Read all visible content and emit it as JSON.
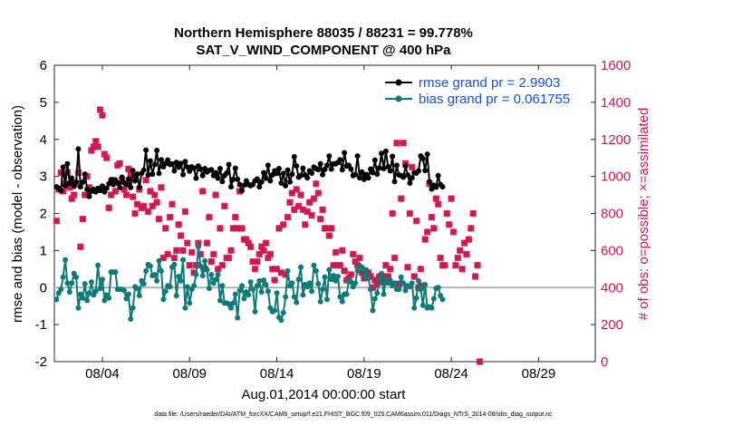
{
  "chart_data": {
    "type": "line",
    "title": "Northern Hemisphere 88035 / 88231 = 99.778%",
    "subtitle": "SAT_V_WIND_COMPONENT @ 400 hPa",
    "xlabel": "Aug.01,2014 00:00:00 start",
    "ylabel": "rmse and bias (model - observation)",
    "y2label": "# of obs: o=possible; ×=assimilated",
    "footer": "data file: /Users/raeder/DAI/ATM_forcXX/CAM6_setup/f.e21.FHIST_BGC.f09_025.CAM6assim.011/Diags_NTrS_2014-08/obs_diag_output.nc",
    "xlim": [
      1,
      32
    ],
    "ylim": [
      -2,
      6
    ],
    "y2lim": [
      0,
      1600
    ],
    "x_ticks": [
      3.75,
      8.75,
      13.75,
      18.75,
      23.75,
      28.75
    ],
    "x_tick_labels": [
      "08/04",
      "08/09",
      "08/14",
      "08/19",
      "08/24",
      "08/29"
    ],
    "y_ticks": [
      "-2",
      "-1",
      "0",
      "1",
      "2",
      "3",
      "4",
      "5",
      "6"
    ],
    "y2_ticks": [
      "0",
      "200",
      "400",
      "600",
      "800",
      "1000",
      "1200",
      "1400",
      "1600"
    ],
    "zero_line": 0,
    "legend_position": "top-right",
    "series": [
      {
        "name": "rmse grand pr = 2.9903",
        "color": "#000000",
        "marker": "circle",
        "axis": "left",
        "x_start": 1.125,
        "x_step": 0.125,
        "values": [
          2.72,
          2.68,
          2.62,
          3.25,
          2.75,
          3.34,
          2.82,
          2.95,
          2.73,
          2.85,
          3.74,
          2.72,
          2.84,
          3.06,
          2.65,
          2.46,
          2.6,
          2.65,
          2.58,
          2.68,
          2.62,
          2.74,
          2.58,
          2.68,
          2.8,
          2.91,
          2.78,
          2.9,
          2.82,
          2.7,
          2.98,
          2.83,
          2.78,
          2.93,
          2.7,
          3.16,
          2.88,
          3.06,
          2.71,
          3.08,
          3.17,
          3.71,
          3.04,
          3.42,
          3.06,
          3.32,
          3.7,
          3.08,
          3.45,
          3.26,
          3.35,
          3.44,
          3.32,
          3.34,
          3.15,
          3.38,
          3.25,
          3.35,
          3.05,
          3.4,
          3.25,
          3.14,
          3.26,
          3.22,
          2.95,
          3.28,
          3.2,
          3.02,
          3.21,
          3.12,
          3.16,
          3.18,
          3.02,
          3.1,
          2.95,
          3.21,
          2.86,
          3.02,
          3.09,
          3.32,
          2.72,
          2.92,
          3.22,
          2.92,
          2.78,
          2.62,
          2.76,
          2.88,
          2.78,
          2.75,
          2.78,
          2.88,
          2.93,
          2.72,
          2.85,
          3.1,
          2.95,
          3.3,
          2.88,
          3.04,
          3.15,
          3.08,
          3.21,
          2.82,
          3.08,
          2.75,
          3.17,
          2.85,
          3.06,
          3.53,
          3.28,
          2.98,
          3.02,
          3.22,
          3.04,
          2.96,
          3.15,
          3.09,
          3.25,
          3.21,
          3.18,
          3.34,
          3.05,
          3.19,
          3.3,
          3.55,
          3.2,
          3.34,
          3.34,
          3.38,
          3.45,
          3.18,
          3.64,
          3.28,
          3.3,
          3.2,
          3.02,
          3.05,
          3.55,
          2.96,
          3.12,
          2.92,
          3.05,
          2.96,
          3.2,
          3.1,
          3.44,
          3.06,
          3.23,
          3.62,
          3.21,
          3.68,
          3.26,
          3.15,
          3.54,
          2.86,
          3.3,
          3.04,
          3.02,
          2.98,
          3.28,
          3.04,
          2.82,
          2.96,
          3.1,
          3.09,
          3.15,
          3.55,
          3.48,
          3.16,
          3.6,
          2.86,
          2.66,
          2.76,
          2.71,
          3.02,
          2.78,
          2.72
        ]
      },
      {
        "name": "bias grand pr = 0.061755",
        "color": "#0e7b78",
        "marker": "circle",
        "axis": "left",
        "x_start": 1.125,
        "x_step": 0.125,
        "values": [
          -0.32,
          -0.15,
          -0.05,
          0.28,
          0.75,
          0.12,
          -0.12,
          0.12,
          0.38,
          0.28,
          -0.55,
          -0.18,
          -0.28,
          0.1,
          -0.35,
          -0.15,
          0.15,
          -0.2,
          -0.1,
          0.6,
          -0.02,
          0.22,
          -0.35,
          -0.2,
          -0.28,
          0.42,
          0.42,
          0.42,
          -0.05,
          -0.05,
          -0.05,
          -0.08,
          -0.3,
          -0.18,
          -0.85,
          -0.55,
          0.02,
          -0.02,
          -0.22,
          0.18,
          0.1,
          0.45,
          0.62,
          0.58,
          0.32,
          0.35,
          0.18,
          0.72,
          0.45,
          -0.32,
          -0.1,
          0.05,
          0.02,
          0.55,
          0.62,
          -0.22,
          0.3,
          0.18,
          0.75,
          -0.55,
          0.02,
          -0.42,
          -0.05,
          0.05,
          0.35,
          1.1,
          0.58,
          0.32,
          0.72,
          0.48,
          -0.02,
          0.35,
          0.12,
          0.22,
          0.35,
          -0.35,
          0.05,
          -0.42,
          -0.42,
          -0.45,
          -0.55,
          -0.42,
          -0.18,
          -0.82,
          -0.08,
          0.05,
          -0.3,
          -0.12,
          -0.2,
          0.15,
          -0.05,
          -0.65,
          0.05,
          0.18,
          -0.12,
          0.2,
          0.08,
          -0.1,
          -0.55,
          -0.65,
          -0.62,
          -0.15,
          -0.8,
          -0.88,
          -0.68,
          -0.25,
          0.45,
          0.05,
          0.12,
          -0.25,
          -0.4,
          0.22,
          0.55,
          -0.2,
          0.08,
          0.02,
          0.12,
          -0.1,
          0.6,
          0.45,
          0.1,
          -0.38,
          -0.05,
          0.28,
          -0.32,
          0.48,
          0.22,
          0.32,
          0.18,
          0.3,
          -0.25,
          -0.38,
          -0.18,
          -0.18,
          0.2,
          0.15,
          0.02,
          0.12,
          0.45,
          0.58,
          0.55,
          0.3,
          0.48,
          0.25,
          -0.05,
          -0.62,
          -0.3,
          -0.15,
          0.22,
          0.38,
          -0.18,
          0.22,
          0.12,
          0.2,
          0.05,
          0.12,
          -0.05,
          -0.05,
          0.28,
          0.12,
          -0.08,
          0.05,
          0.02,
          0.12,
          -0.55,
          -0.28,
          0.18,
          -0.05,
          -0.48,
          0.08,
          -0.55,
          -0.52,
          -0.55,
          -0.3,
          -0.02,
          0.0,
          -0.22,
          -0.32
        ]
      }
    ],
    "obs_series": [
      {
        "name": "possible",
        "marker": "circle",
        "color": "#cc1a4f",
        "axis": "right",
        "x": [],
        "values": []
      },
      {
        "name": "assimilated",
        "marker": "x",
        "color": "#cc1a4f",
        "axis": "right",
        "x_start": 1.125,
        "x_step": 0.125,
        "values": [
          760,
          930,
          1020,
          920,
          960,
          1020,
          940,
          880,
          900,
          960,
          1020,
          620,
          770,
          900,
          1000,
          940,
          1140,
          1160,
          1190,
          1160,
          1360,
          1330,
          1120,
          1100,
          830,
          900,
          980,
          920,
          1060,
          1070,
          980,
          930,
          900,
          1040,
          1010,
          890,
          800,
          850,
          930,
          830,
          840,
          980,
          810,
          920,
          840,
          900,
          860,
          770,
          940,
          560,
          720,
          580,
          780,
          850,
          560,
          600,
          740,
          680,
          600,
          810,
          640,
          520,
          590,
          480,
          520,
          640,
          580,
          920,
          500,
          640,
          780,
          540,
          580,
          900,
          500,
          720,
          520,
          840,
          560,
          560,
          600,
          720,
          780,
          720,
          920,
          720,
          660,
          660,
          640,
          620,
          540,
          500,
          540,
          580,
          620,
          600,
          640,
          560,
          580,
          500,
          440,
          500,
          720,
          480,
          740,
          470,
          780,
          860,
          910,
          820,
          930,
          840,
          900,
          820,
          740,
          810,
          860,
          790,
          880,
          960,
          910,
          770,
          820,
          720,
          720,
          680,
          720,
          520,
          590,
          520,
          520,
          600,
          490,
          440,
          450,
          470,
          580,
          540,
          520,
          560,
          480,
          450,
          480,
          480,
          460,
          400,
          440,
          420,
          460,
          430,
          460,
          520,
          460,
          500,
          800,
          560,
          1180,
          420,
          880,
          1180,
          1070,
          510,
          800,
          1050,
          460,
          760,
          400,
          500,
          410,
          660,
          700,
          960,
          780,
          720,
          880,
          850,
          560,
          520,
          520,
          800,
          740,
          880,
          700,
          520,
          560,
          600,
          500,
          640,
          580,
          660,
          720,
          800,
          460,
          520,
          0
        ]
      }
    ]
  }
}
